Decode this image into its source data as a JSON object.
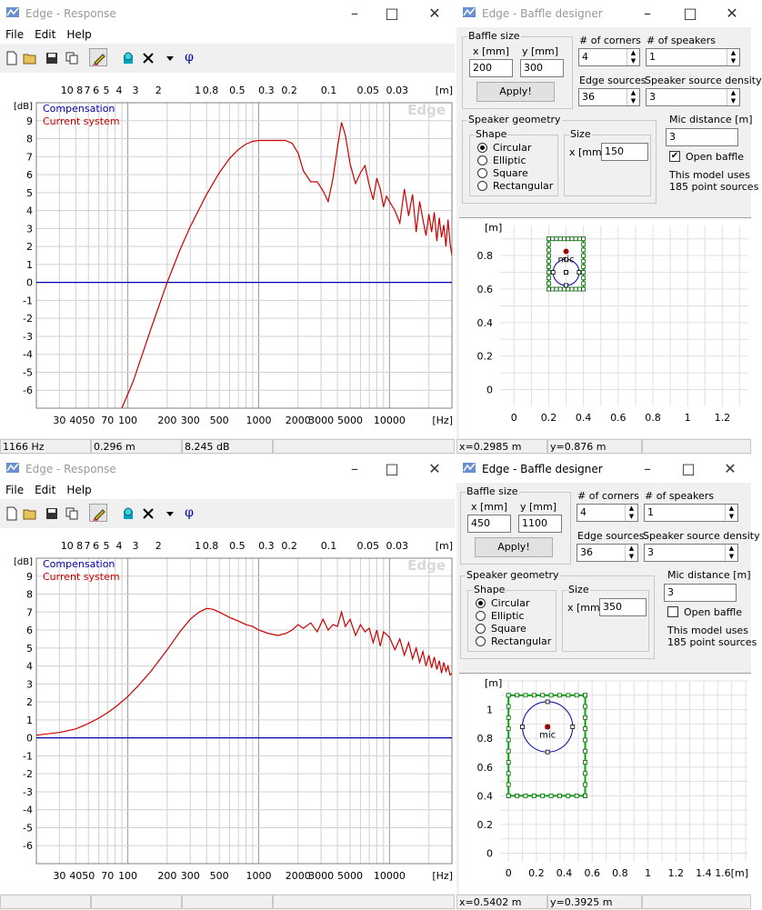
{
  "colors": {
    "grid": "#cccccc",
    "zero_line": "#0000aa",
    "current_curve": "#cc0000",
    "compensation_text": "#0000aa",
    "baffle_outline": "#00aa00"
  },
  "menu": [
    "File",
    "Edit",
    "Help"
  ],
  "toolbar_icons": [
    "new-file-icon",
    "open-folder-icon",
    "save-disk-icon",
    "copy-icon",
    "pencil-icon",
    "speaker-icon",
    "delete-x-icon",
    "dropdown-arrow-icon",
    "phase-icon"
  ],
  "toolbar": {
    "phi_label": "φ"
  },
  "response_windows": [
    {
      "title": "Edge - Response",
      "watermark": "Edge",
      "legend": {
        "compensation": "Compensation",
        "current": "Current system"
      },
      "y_unit": "[dB]",
      "x_unit": "[Hz]",
      "dist_unit": "[m]",
      "status": [
        "1166 Hz",
        "0.296 m",
        "8.245 dB",
        ""
      ],
      "chart_data": {
        "type": "line",
        "x_scale": "log",
        "xlim": [
          20,
          30000
        ],
        "ylim": [
          -7,
          10
        ],
        "grid": true,
        "xlabel": "[Hz]",
        "ylabel": "[dB]",
        "x_tick_labels": [
          "30",
          "40",
          "50",
          "70",
          "100",
          "200",
          "300",
          "500",
          "1000",
          "2000",
          "3000",
          "5000",
          "10000"
        ],
        "top_tick_labels": [
          "10",
          "8",
          "7",
          "6",
          "5",
          "4",
          "3",
          "2",
          "1",
          "0.8",
          "0.5",
          "0.3",
          "0.2",
          "0.1",
          "0.05",
          "0.03"
        ],
        "y_tick_labels": [
          "9",
          "8",
          "7",
          "6",
          "5",
          "4",
          "3",
          "2",
          "1",
          "0",
          "-1",
          "-2",
          "-3",
          "-4",
          "-5",
          "-6"
        ],
        "series": [
          {
            "name": "Compensation",
            "x": [
              20,
              30000
            ],
            "y": [
              0,
              0
            ]
          },
          {
            "name": "Current system",
            "x": [
              90,
              110,
              150,
              200,
              250,
              300,
              400,
              500,
              600,
              700,
              800,
              900,
              1000,
              1200,
              1400,
              1600,
              1800,
              2000,
              2200,
              2500,
              2800,
              3100,
              3400,
              3700,
              4000,
              4300,
              4600,
              5000,
              5500,
              6000,
              6500,
              7000,
              7500,
              8000,
              8500,
              9000,
              9500,
              10000,
              11000,
              12000,
              13000,
              14000,
              15000,
              16000,
              17000,
              18000,
              19000,
              20000,
              21000,
              22000,
              23000,
              24000,
              25000,
              26000,
              27000,
              28000,
              29000,
              30000
            ],
            "y": [
              -7,
              -5.5,
              -2.6,
              0,
              1.8,
              3.1,
              4.9,
              6.1,
              6.9,
              7.4,
              7.7,
              7.85,
              7.9,
              7.9,
              7.9,
              7.9,
              7.75,
              7.2,
              6.2,
              5.6,
              5.6,
              5.1,
              4.5,
              5.8,
              7.5,
              8.9,
              8.2,
              6.6,
              5.5,
              6.1,
              6.5,
              5.4,
              4.6,
              5.8,
              5.2,
              4.2,
              4.8,
              4.5,
              4.0,
              3.3,
              5.2,
              3.7,
              4.9,
              2.8,
              4.5,
              3.5,
              2.6,
              3.8,
              2.8,
              3.9,
              2.3,
              3.6,
              2.5,
              3.2,
              2.0,
              3.5,
              2.2,
              1.5
            ]
          }
        ]
      }
    },
    {
      "title": "Edge - Response",
      "watermark": "Edge",
      "legend": {
        "compensation": "Compensation",
        "current": "Current system"
      },
      "y_unit": "[dB]",
      "x_unit": "[Hz]",
      "dist_unit": "[m]",
      "status": [
        "",
        "",
        "",
        ""
      ],
      "chart_data": {
        "type": "line",
        "x_scale": "log",
        "xlim": [
          20,
          30000
        ],
        "ylim": [
          -7,
          10
        ],
        "grid": true,
        "xlabel": "[Hz]",
        "ylabel": "[dB]",
        "x_tick_labels": [
          "30",
          "40",
          "50",
          "70",
          "100",
          "200",
          "300",
          "500",
          "1000",
          "2000",
          "3000",
          "5000",
          "10000"
        ],
        "top_tick_labels": [
          "10",
          "8",
          "7",
          "6",
          "5",
          "4",
          "3",
          "2",
          "1",
          "0.8",
          "0.5",
          "0.3",
          "0.2",
          "0.1",
          "0.05",
          "0.03"
        ],
        "y_tick_labels": [
          "9",
          "8",
          "7",
          "6",
          "5",
          "4",
          "3",
          "2",
          "1",
          "0",
          "-1",
          "-2",
          "-3",
          "-4",
          "-5",
          "-6"
        ],
        "series": [
          {
            "name": "Compensation",
            "x": [
              20,
              30000
            ],
            "y": [
              0,
              0
            ]
          },
          {
            "name": "Current system",
            "x": [
              20,
              30,
              40,
              50,
              60,
              70,
              80,
              100,
              120,
              150,
              200,
              250,
              300,
              350,
              400,
              450,
              500,
              600,
              700,
              800,
              900,
              1000,
              1200,
              1400,
              1600,
              1800,
              2000,
              2200,
              2500,
              2800,
              3100,
              3400,
              3700,
              4000,
              4300,
              4600,
              5000,
              5500,
              6000,
              6500,
              7000,
              7500,
              8000,
              8500,
              9000,
              10000,
              11000,
              12000,
              13000,
              14000,
              15000,
              16000,
              17000,
              18000,
              19000,
              20000,
              21000,
              22000,
              23000,
              24000,
              25000,
              26000,
              27000,
              28000,
              29000,
              30000
            ],
            "y": [
              0.15,
              0.3,
              0.5,
              0.8,
              1.1,
              1.4,
              1.7,
              2.3,
              2.9,
              3.7,
              4.9,
              5.9,
              6.6,
              7.0,
              7.2,
              7.15,
              7.0,
              6.7,
              6.5,
              6.3,
              6.2,
              6.0,
              5.8,
              5.7,
              5.8,
              6.0,
              6.3,
              6.1,
              6.4,
              5.9,
              6.6,
              6.0,
              6.3,
              6.2,
              7.0,
              6.2,
              6.6,
              5.7,
              6.3,
              5.9,
              6.1,
              5.3,
              6.0,
              5.1,
              5.9,
              5.6,
              4.9,
              5.5,
              4.6,
              5.3,
              4.4,
              5.0,
              4.2,
              4.8,
              4.0,
              4.6,
              3.9,
              4.5,
              3.8,
              4.3,
              3.6,
              4.2,
              3.7,
              4.0,
              3.5,
              3.6
            ]
          }
        ]
      }
    }
  ],
  "baffle_windows": [
    {
      "title": "Edge - Baffle designer",
      "baffle_size": {
        "group": "Baffle size",
        "x_label": "x [mm]",
        "y_label": "y [mm]",
        "x": "200",
        "y": "300",
        "apply": "Apply!"
      },
      "corners": {
        "label": "# of corners",
        "value": "4"
      },
      "speakers": {
        "label": "# of speakers",
        "value": "1"
      },
      "edge_sources": {
        "label": "Edge sources",
        "value": "36"
      },
      "density": {
        "label": "Speaker source density",
        "value": "3"
      },
      "geometry": {
        "group": "Speaker geometry",
        "shape_group": "Shape",
        "size_group": "Size",
        "size_label": "x [mm]",
        "size_value": "150",
        "shapes": [
          "Circular",
          "Elliptic",
          "Square",
          "Rectangular"
        ],
        "selected": 0
      },
      "mic": {
        "label": "Mic distance [m]",
        "value": "3"
      },
      "open_baffle": {
        "label": "Open baffle",
        "checked": true
      },
      "model_text": [
        "This model uses",
        "185 point sources"
      ],
      "plot": {
        "unit": "[m]",
        "mic_label": "mic",
        "x_ticks": [
          "0",
          "0.2",
          "0.4",
          "0.6",
          "0.8",
          "1",
          "1.2"
        ],
        "y_ticks": [
          "0.8",
          "0.6",
          "0.4",
          "0.2",
          "0"
        ],
        "xlim": [
          -0.08,
          1.35
        ],
        "ylim": [
          -0.1,
          0.98
        ],
        "baffle": {
          "x0": 0.2,
          "y0": 0.6,
          "x1": 0.4,
          "y1": 0.9
        },
        "speaker": {
          "cx": 0.3,
          "cy": 0.7,
          "r": 0.075
        },
        "mic": {
          "x": 0.3,
          "y": 0.825
        }
      },
      "status": [
        "x=0.2985 m",
        "y=0.876 m",
        ""
      ]
    },
    {
      "title": "Edge - Baffle designer",
      "baffle_size": {
        "group": "Baffle size",
        "x_label": "x [mm]",
        "y_label": "y [mm]",
        "x": "450",
        "y": "1100",
        "apply": "Apply!"
      },
      "corners": {
        "label": "# of corners",
        "value": "4"
      },
      "speakers": {
        "label": "# of speakers",
        "value": "1"
      },
      "edge_sources": {
        "label": "Edge sources",
        "value": "36"
      },
      "density": {
        "label": "Speaker source density",
        "value": "3"
      },
      "geometry": {
        "group": "Speaker geometry",
        "shape_group": "Shape",
        "size_group": "Size",
        "size_label": "x [mm]",
        "size_value": "350",
        "shapes": [
          "Circular",
          "Elliptic",
          "Square",
          "Rectangular"
        ],
        "selected": 0
      },
      "mic": {
        "label": "Mic distance [m]",
        "value": "3"
      },
      "open_baffle": {
        "label": "Open baffle",
        "checked": false
      },
      "model_text": [
        "This model uses",
        "185 point sources"
      ],
      "plot": {
        "unit": "[m]",
        "mic_label": "mic",
        "x_ticks": [
          "0",
          "0.2",
          "0.4",
          "0.6",
          "0.8",
          "1",
          "1.2",
          "1.4",
          "1.6[m]"
        ],
        "y_ticks": [
          "1",
          "0.8",
          "0.6",
          "0.4",
          "0.2",
          "0"
        ],
        "xlim": [
          -0.06,
          1.72
        ],
        "ylim": [
          -0.06,
          1.2
        ],
        "baffle": {
          "x0": 0.0,
          "y0": 0.4,
          "x1": 0.55,
          "y1": 1.1
        },
        "speaker": {
          "cx": 0.28,
          "cy": 0.88,
          "r": 0.18
        },
        "mic": {
          "x": 0.28,
          "y": 0.88
        }
      },
      "status": [
        "x=0.5402 m",
        "y=0.3925 m",
        ""
      ]
    }
  ]
}
